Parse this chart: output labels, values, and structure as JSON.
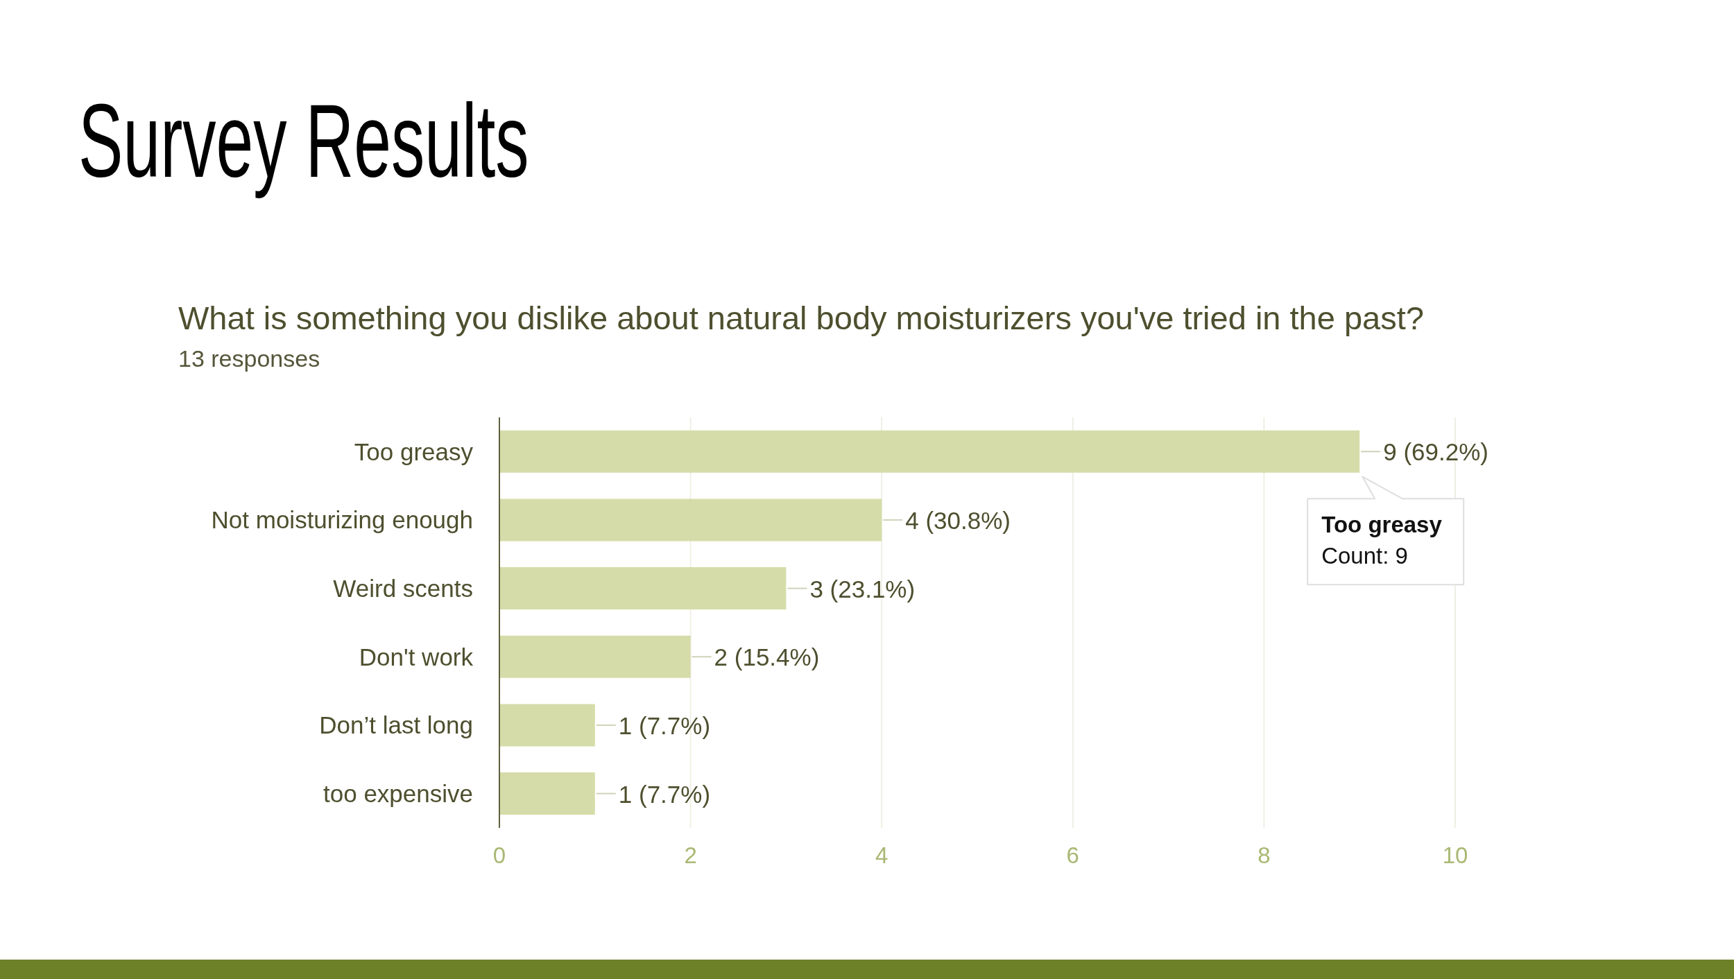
{
  "chart_data": {
    "type": "bar",
    "orientation": "horizontal",
    "title": "Survey Results",
    "subtitle": "What is something you dislike about natural body moisturizers you've tried in the past?",
    "categories": [
      "Too greasy",
      "Not moisturizing enough",
      "Weird scents",
      "Don't work",
      "Don’t last long",
      "too expensive"
    ],
    "values": [
      9,
      4,
      3,
      2,
      1,
      1
    ],
    "value_labels": [
      "9 (69.2%)",
      "4 (30.8%)",
      "3 (23.1%)",
      "2 (15.4%)",
      "1 (7.7%)",
      "1 (7.7%)"
    ],
    "color": "#d6dca9",
    "xlim": [
      0,
      10
    ],
    "xticks": [
      0,
      2,
      4,
      6,
      8,
      10
    ],
    "grid": "x",
    "annotations": [
      "13 responses",
      {
        "text": "Too greasy\nCount: 9",
        "x": 9,
        "y": "Too greasy"
      }
    ]
  }
}
